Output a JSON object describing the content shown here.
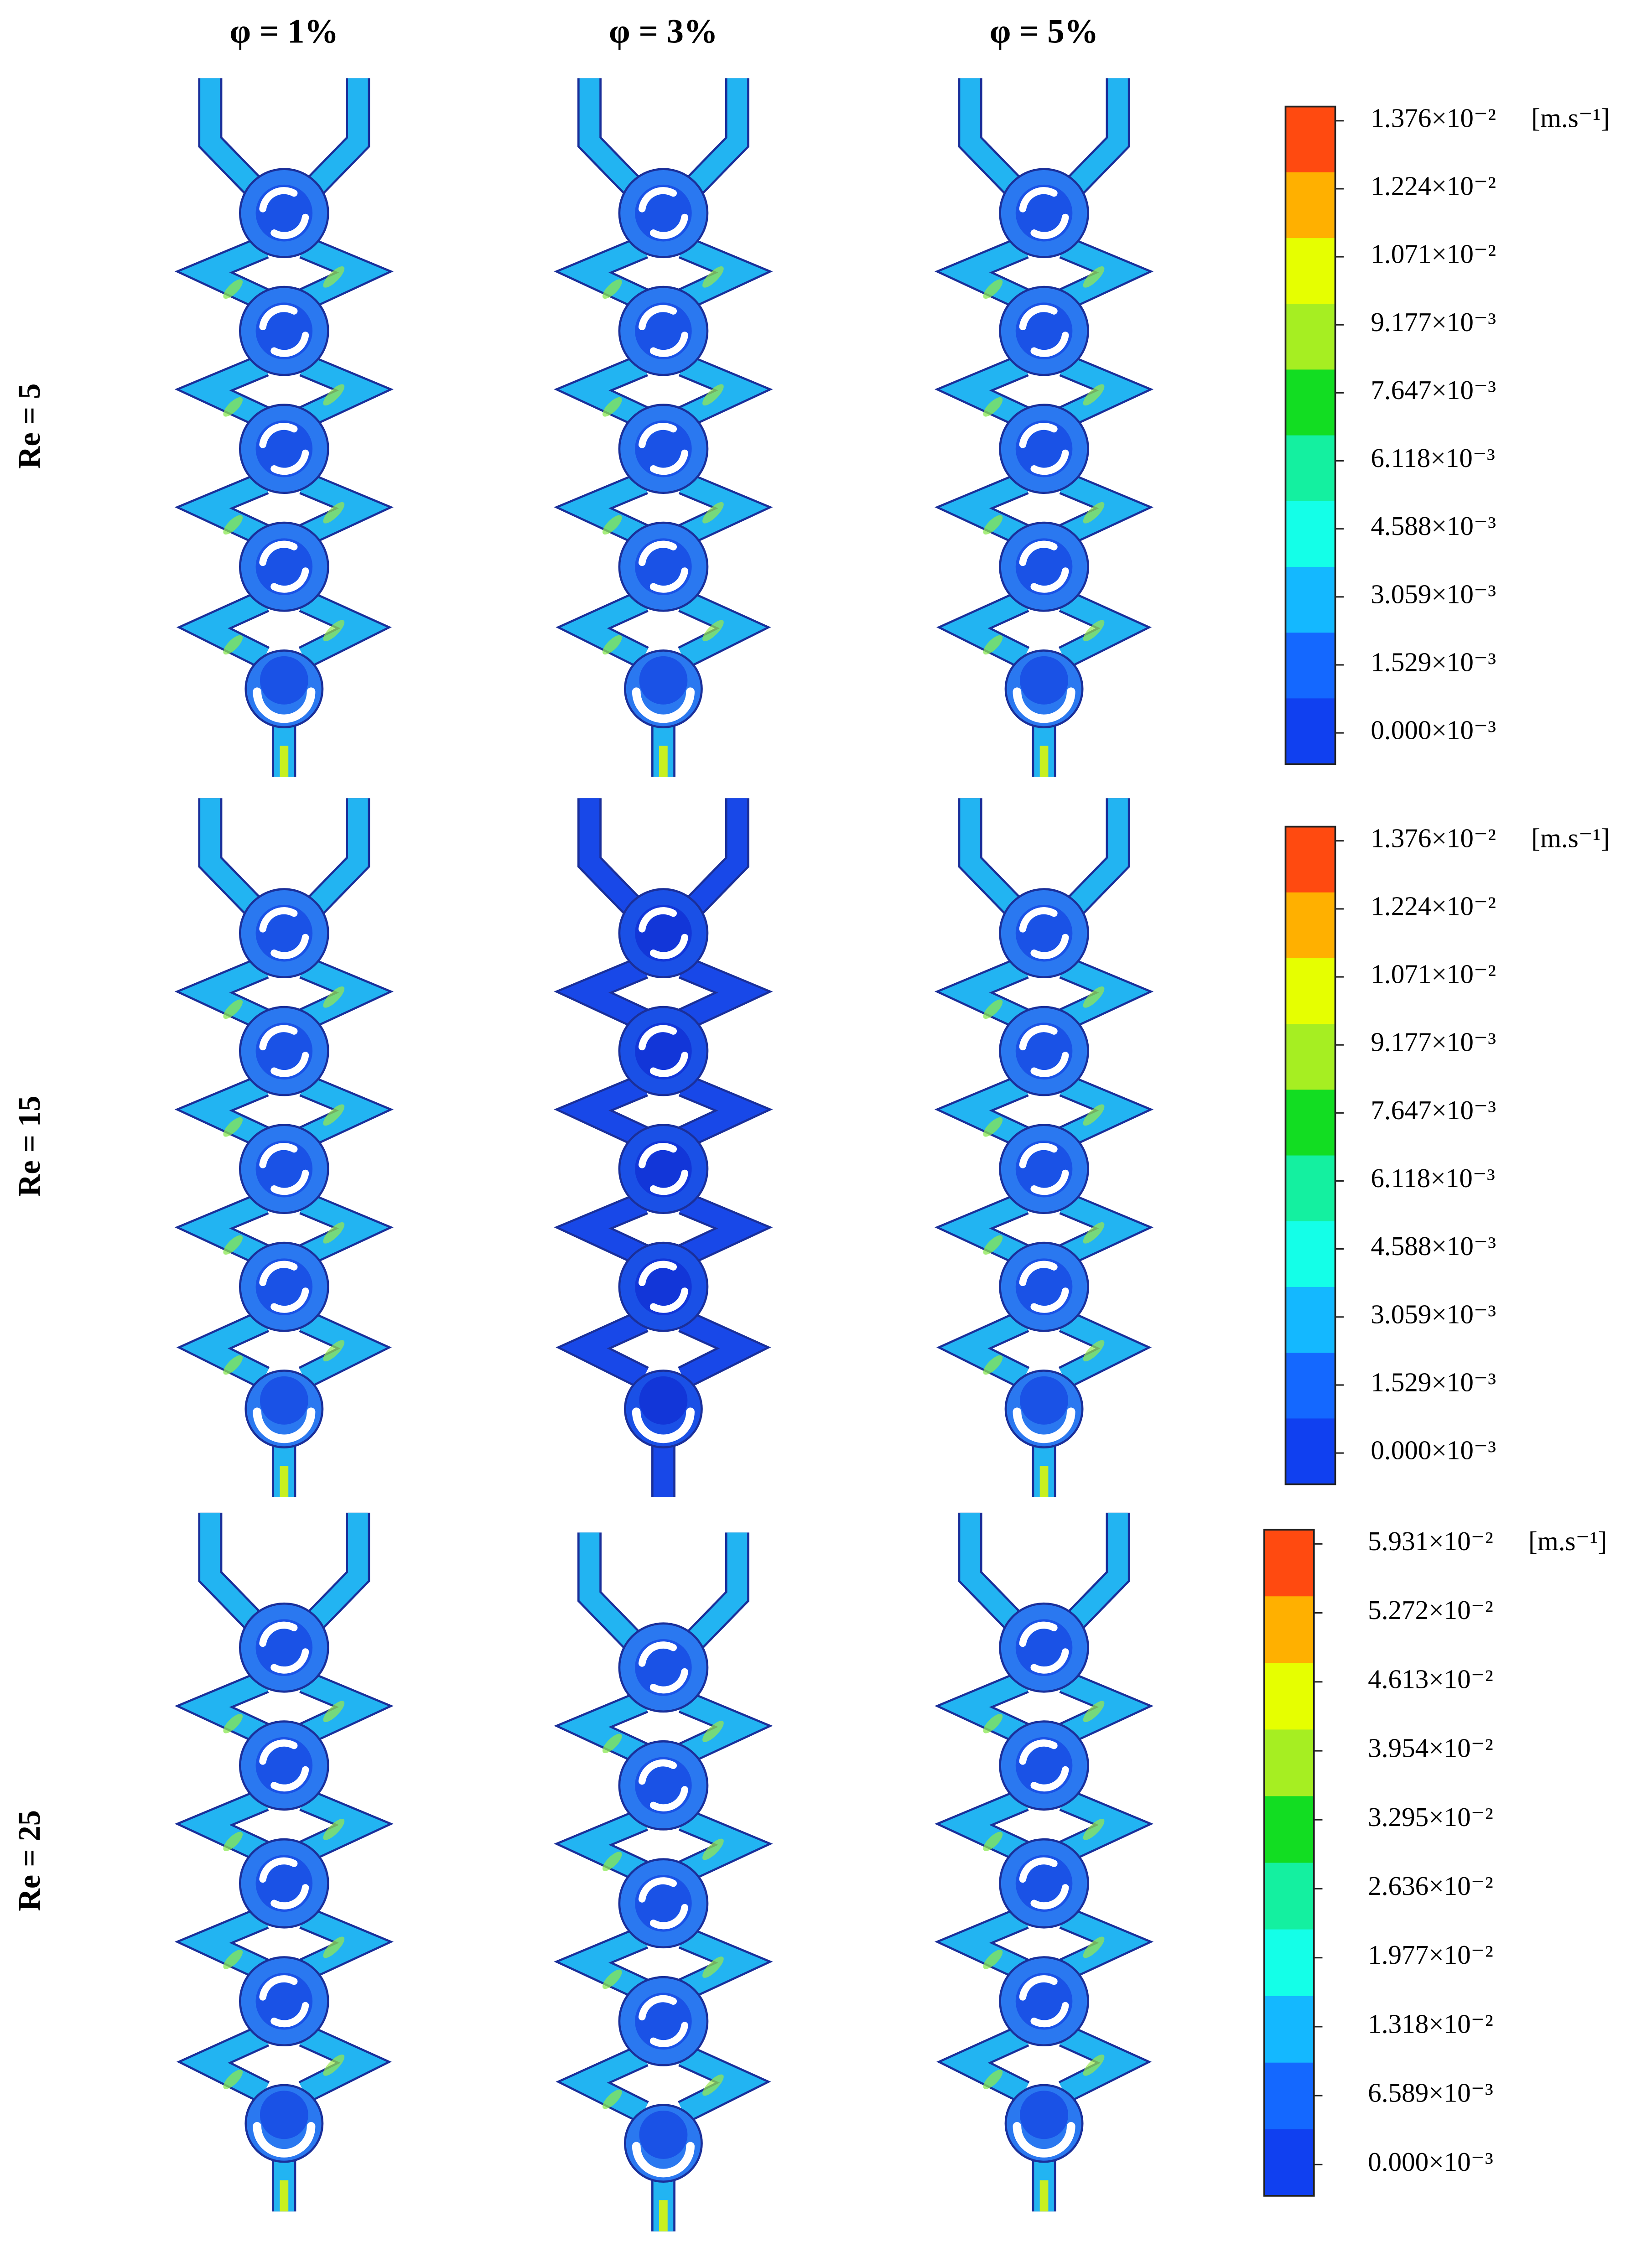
{
  "column_headers": [
    "φ = 1%",
    "φ = 3%",
    "φ = 5%"
  ],
  "row_labels": [
    "Re = 5",
    "Re = 15",
    "Re = 25"
  ],
  "colorbar_colors": [
    "#ff4a10",
    "#ffb000",
    "#e6ff00",
    "#a6ee22",
    "#12dd22",
    "#14f0a0",
    "#14ffe8",
    "#14b8ff",
    "#1468ff",
    "#1040f0"
  ],
  "colorbars": [
    {
      "unit": "[m.s⁻¹]",
      "labels": [
        "1.376×10⁻²",
        "1.224×10⁻²",
        "1.071×10⁻²",
        "9.177×10⁻³",
        "7.647×10⁻³",
        "6.118×10⁻³",
        "4.588×10⁻³",
        "3.059×10⁻³",
        "1.529×10⁻³",
        "0.000×10⁻³"
      ]
    },
    {
      "unit": "[m.s⁻¹]",
      "labels": [
        "1.376×10⁻²",
        "1.224×10⁻²",
        "1.071×10⁻²",
        "9.177×10⁻³",
        "7.647×10⁻³",
        "6.118×10⁻³",
        "4.588×10⁻³",
        "3.059×10⁻³",
        "1.529×10⁻³",
        "0.000×10⁻³"
      ]
    },
    {
      "unit": "[m.s⁻¹]",
      "labels": [
        "5.931×10⁻²",
        "5.272×10⁻²",
        "4.613×10⁻²",
        "3.954×10⁻²",
        "3.295×10⁻²",
        "2.636×10⁻²",
        "1.977×10⁻²",
        "1.318×10⁻²",
        "6.589×10⁻³",
        "0.000×10⁻³"
      ]
    }
  ]
}
